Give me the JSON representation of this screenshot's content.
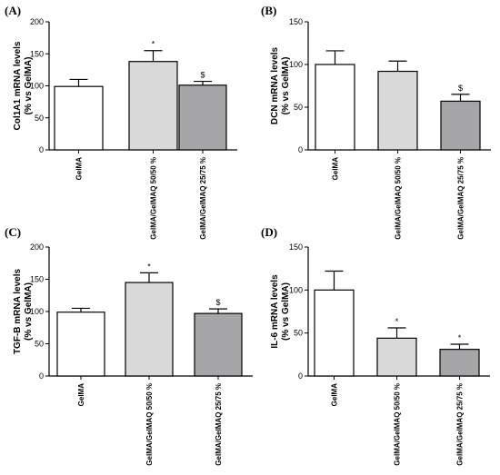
{
  "chart_data": [
    {
      "type": "bar",
      "panel_letter": "(A)",
      "ylabel_lines": [
        "Col1A1 mRNA levels",
        "(% vs GelMA)"
      ],
      "categories": [
        "GelMA",
        "GelMA/GelMAQ 50/50 %",
        "GelMA/GelMAQ 25/75 %"
      ],
      "values": [
        99,
        138,
        101
      ],
      "errors": [
        11,
        17,
        6
      ],
      "annotations": [
        "",
        "*",
        "$"
      ],
      "bar_colors": [
        "#ffffff",
        "#d9d9d9",
        "#a6a6a8"
      ],
      "ylim": [
        0,
        200
      ],
      "yticks": [
        0,
        50,
        100,
        150,
        200
      ]
    },
    {
      "type": "bar",
      "panel_letter": "(B)",
      "ylabel_lines": [
        "DCN mRNA levels",
        "(% vs GelMA)"
      ],
      "categories": [
        "GelMA",
        "GelMA/GelMAQ 50/50 %",
        "GelMA/GelMAQ 25/75 %"
      ],
      "values": [
        100,
        92,
        57
      ],
      "errors": [
        16,
        12,
        8
      ],
      "annotations": [
        "",
        "",
        "$"
      ],
      "bar_colors": [
        "#ffffff",
        "#d9d9d9",
        "#a6a6a8"
      ],
      "ylim": [
        0,
        150
      ],
      "yticks": [
        0,
        50,
        100,
        150
      ]
    },
    {
      "type": "bar",
      "panel_letter": "(C)",
      "ylabel_lines": [
        "TGF-B mRNA levels",
        "(% vs GelMA)"
      ],
      "categories": [
        "GelMA",
        "GelMA/GelMAQ 50/50 %",
        "GelMA/GelMAQ 25/75 %"
      ],
      "values": [
        99,
        145,
        97
      ],
      "errors": [
        6,
        15,
        7
      ],
      "annotations": [
        "",
        "*",
        "$"
      ],
      "bar_colors": [
        "#ffffff",
        "#d9d9d9",
        "#a6a6a8"
      ],
      "ylim": [
        0,
        200
      ],
      "yticks": [
        0,
        50,
        100,
        150,
        200
      ]
    },
    {
      "type": "bar",
      "panel_letter": "(D)",
      "ylabel_lines": [
        "IL-6 mRNA levels",
        "(% vs GelMA)"
      ],
      "categories": [
        "GelMA",
        "GelMA/GelMAQ 50/50 %",
        "GelMA/GelMAQ 25/75 %"
      ],
      "values": [
        100,
        44,
        31
      ],
      "errors": [
        22,
        12,
        6
      ],
      "annotations": [
        "",
        "*",
        "*"
      ],
      "bar_colors": [
        "#ffffff",
        "#d9d9d9",
        "#a6a6a8"
      ],
      "ylim": [
        0,
        150
      ],
      "yticks": [
        0,
        50,
        100,
        150
      ]
    }
  ]
}
